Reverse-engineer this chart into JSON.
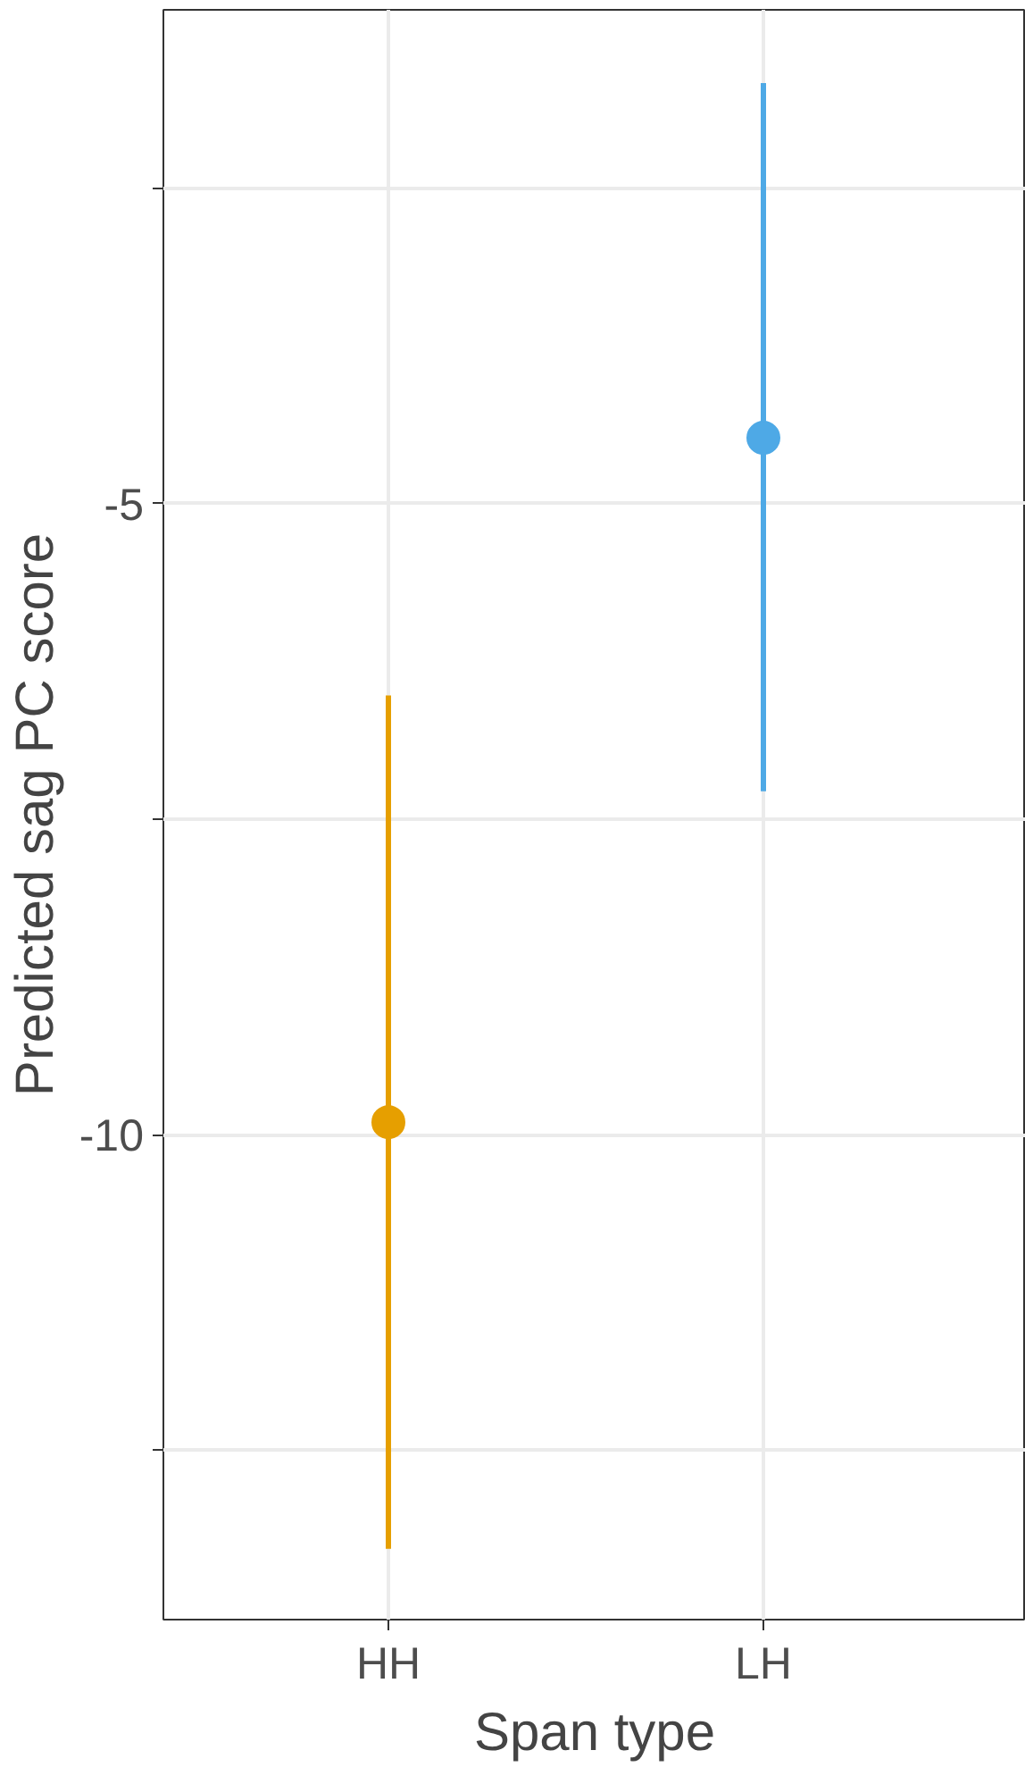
{
  "chart_data": {
    "type": "scatter",
    "xlabel": "Span type",
    "ylabel": "Predicted sag PC score",
    "categories": [
      "HH",
      "LH"
    ],
    "values": [
      -9.9,
      -4.48
    ],
    "errors": [
      [
        -13.28,
        -6.52
      ],
      [
        -7.28,
        -1.67
      ]
    ],
    "colors": [
      "#e69f00",
      "#4ea9e6"
    ],
    "ylim": [
      -13.84,
      -1.09
    ],
    "yticks": [
      {
        "value": -12.5,
        "label": null
      },
      -10,
      {
        "value": -7.5,
        "label": null
      },
      -5,
      {
        "value": -2.5,
        "label": null
      }
    ],
    "grid": true,
    "marker": "circle"
  }
}
